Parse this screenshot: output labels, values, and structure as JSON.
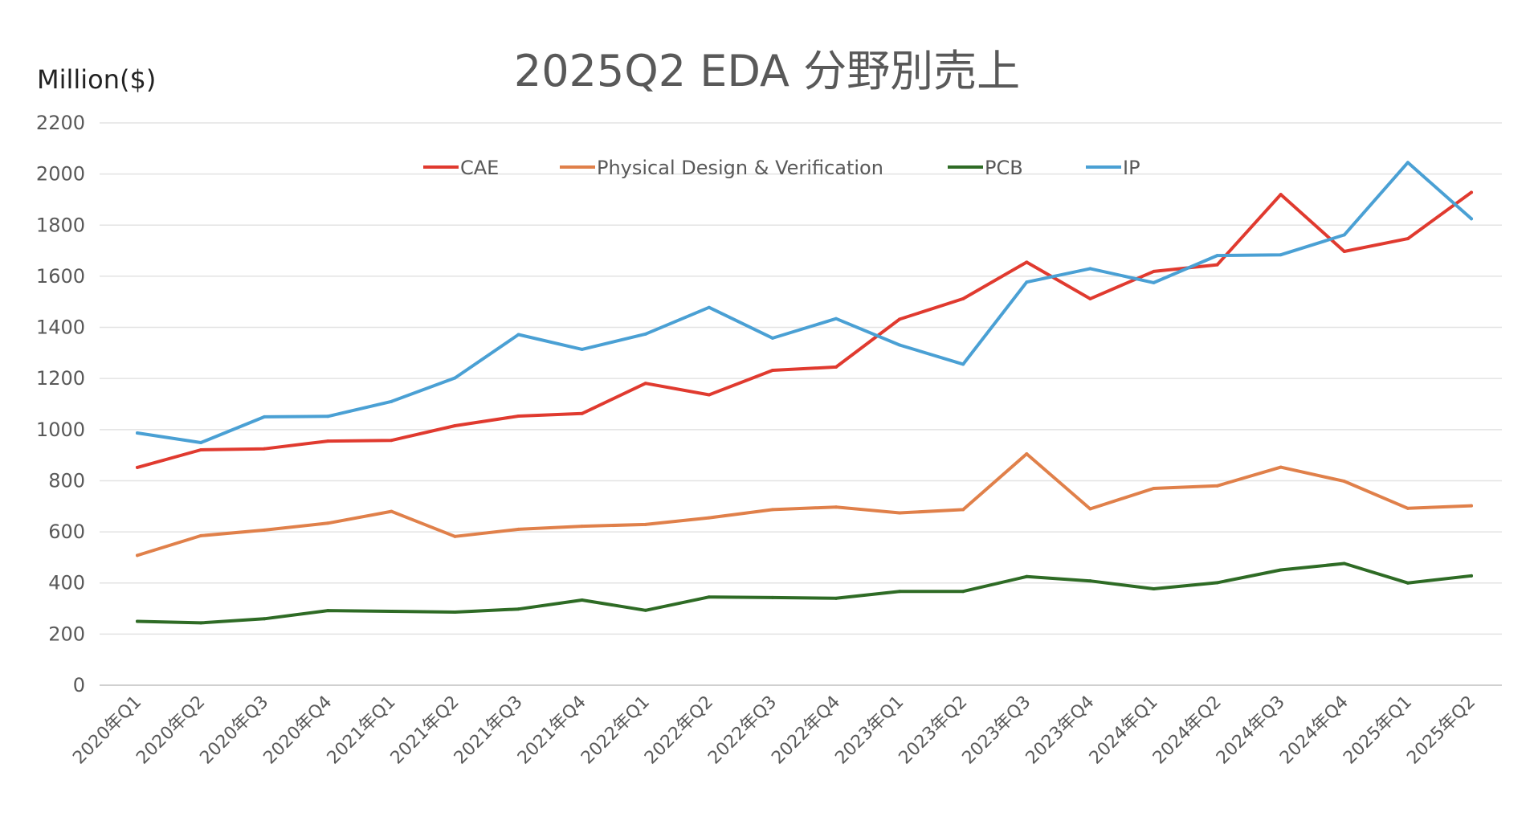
{
  "chart_data": {
    "type": "line",
    "title": "2025Q2  EDA 分野別売上",
    "ylabel": "Million($)",
    "xlabel": "",
    "ylim": [
      0,
      2200
    ],
    "yticks": [
      0,
      200,
      400,
      600,
      800,
      1000,
      1200,
      1400,
      1600,
      1800,
      2000,
      2200
    ],
    "grid": true,
    "legend_position": "top",
    "categories": [
      "2020年Q1",
      "2020年Q2",
      "2020年Q3",
      "2020年Q4",
      "2021年Q1",
      "2021年Q2",
      "2021年Q3",
      "2021年Q4",
      "2022年Q1",
      "2022年Q2",
      "2022年Q3",
      "2022年Q4",
      "2023年Q1",
      "2023年Q2",
      "2023年Q3",
      "2023年Q4",
      "2024年Q1",
      "2024年Q2",
      "2024年Q3",
      "2024年Q4",
      "2025年Q1",
      "2025年Q2"
    ],
    "series": [
      {
        "name": "CAE",
        "color": "#e03a2f",
        "values": [
          852,
          921,
          925,
          955,
          958,
          1015,
          1053,
          1063,
          1181,
          1136,
          1232,
          1245,
          1432,
          1512,
          1655,
          1512,
          1619,
          1645,
          1920,
          1697,
          1747,
          1928
        ]
      },
      {
        "name": "Physical Design & Verification",
        "color": "#e0804a",
        "values": [
          508,
          585,
          607,
          634,
          680,
          582,
          610,
          622,
          629,
          655,
          687,
          697,
          674,
          687,
          905,
          690,
          770,
          780,
          853,
          798,
          692,
          702
        ]
      },
      {
        "name": "PCB",
        "color": "#2e6b25",
        "values": [
          250,
          244,
          260,
          292,
          289,
          286,
          298,
          333,
          293,
          345,
          343,
          340,
          367,
          367,
          425,
          408,
          377,
          401,
          451,
          476,
          400,
          428
        ]
      },
      {
        "name": "IP",
        "color": "#4aa0d4",
        "values": [
          987,
          949,
          1050,
          1052,
          1110,
          1202,
          1372,
          1314,
          1374,
          1478,
          1358,
          1434,
          1331,
          1256,
          1577,
          1630,
          1575,
          1681,
          1684,
          1762,
          2045,
          1825
        ]
      }
    ]
  }
}
